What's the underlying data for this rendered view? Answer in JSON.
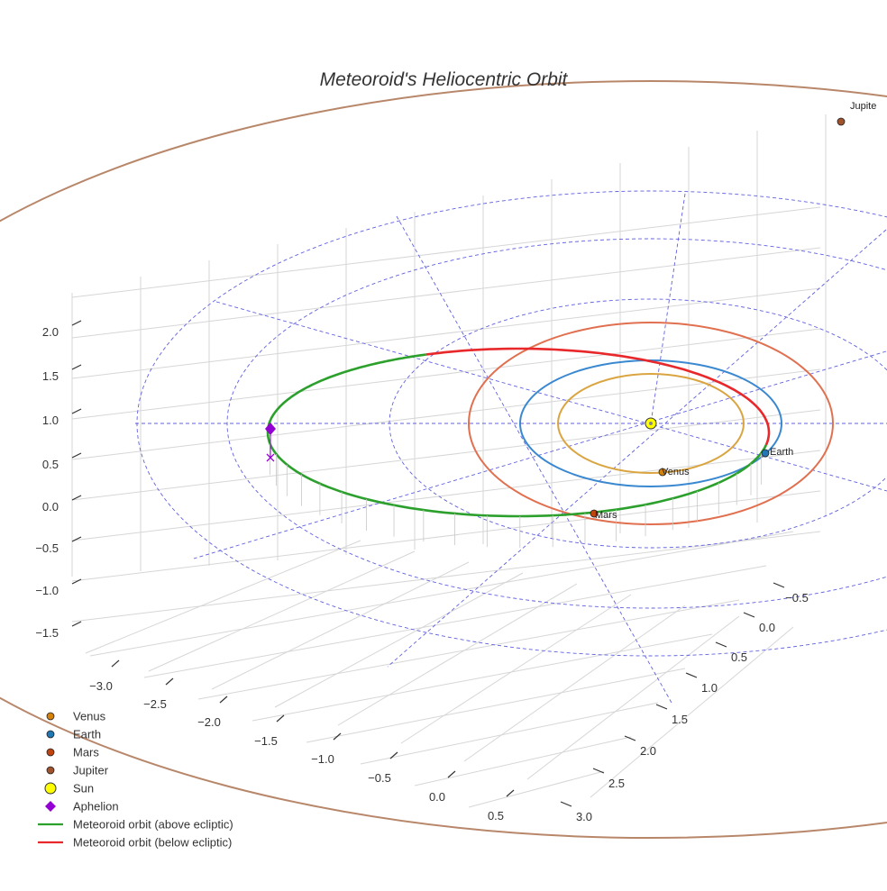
{
  "chart_data": {
    "type": "scatter",
    "projection": "3d",
    "title": "Meteoroid's Heliocentric Orbit",
    "xlabel": "",
    "ylabel": "",
    "zlabel": "",
    "x_ticks": [
      "−3.0",
      "−2.5",
      "−2.0",
      "−1.5",
      "−1.0",
      "−0.5",
      "0.0",
      "0.5"
    ],
    "y_ticks": [
      "−0.5",
      "0.0",
      "0.5",
      "1.0",
      "1.5",
      "2.0",
      "2.5",
      "3.0"
    ],
    "z_ticks": [
      "2.0",
      "1.5",
      "1.0",
      "0.5",
      "0.0",
      "−0.5",
      "−1.0",
      "−1.5"
    ],
    "xlim": [
      -3.1,
      0.7
    ],
    "ylim": [
      -0.8,
      3.1
    ],
    "zlim": [
      -1.8,
      2.2
    ],
    "grid": true,
    "legend_position": "bottom-left",
    "ecliptic_grid": "dashed polar grid in ecliptic plane",
    "bodies": [
      {
        "name": "Venus",
        "color": "#D4820A",
        "semi_major_axis_au": 0.72,
        "label": "Venus"
      },
      {
        "name": "Earth",
        "color": "#1F77B4",
        "semi_major_axis_au": 1.0,
        "label": "Earth"
      },
      {
        "name": "Mars",
        "color": "#C1440E",
        "semi_major_axis_au": 1.52,
        "label": "Mars"
      },
      {
        "name": "Jupiter",
        "color": "#A0522D",
        "semi_major_axis_au": 5.2,
        "label": "Jupite"
      }
    ],
    "sun": {
      "name": "Sun",
      "color": "#FFFF00",
      "position": [
        0,
        0,
        0
      ]
    },
    "aphelion": {
      "name": "Aphelion",
      "color": "#9400D3",
      "position": [
        -2.9,
        0.05,
        0.0
      ]
    },
    "series": [
      {
        "name": "Venus",
        "color": "#DAA541"
      },
      {
        "name": "Earth",
        "color": "#3A88D0"
      },
      {
        "name": "Mars",
        "color": "#E07050"
      },
      {
        "name": "Jupiter",
        "color": "#B8876A"
      },
      {
        "name": "Meteoroid orbit (above ecliptic)",
        "color": "#2CA02C"
      },
      {
        "name": "Meteoroid orbit (below ecliptic)",
        "color": "#E8282A"
      }
    ],
    "legend": [
      {
        "label": "Venus",
        "marker": "circle",
        "color": "#D4820A"
      },
      {
        "label": "Earth",
        "marker": "circle",
        "color": "#1F77B4"
      },
      {
        "label": "Mars",
        "marker": "circle",
        "color": "#C1440E"
      },
      {
        "label": "Jupiter",
        "marker": "circle",
        "color": "#A0522D"
      },
      {
        "label": "Sun",
        "marker": "circle-large",
        "color": "#FFFF00"
      },
      {
        "label": "Aphelion",
        "marker": "diamond",
        "color": "#9400D3"
      },
      {
        "label": "Meteoroid orbit (above ecliptic)",
        "marker": "line",
        "color": "#2CA02C"
      },
      {
        "label": "Meteoroid orbit (below ecliptic)",
        "marker": "line",
        "color": "#E8282A"
      }
    ]
  }
}
